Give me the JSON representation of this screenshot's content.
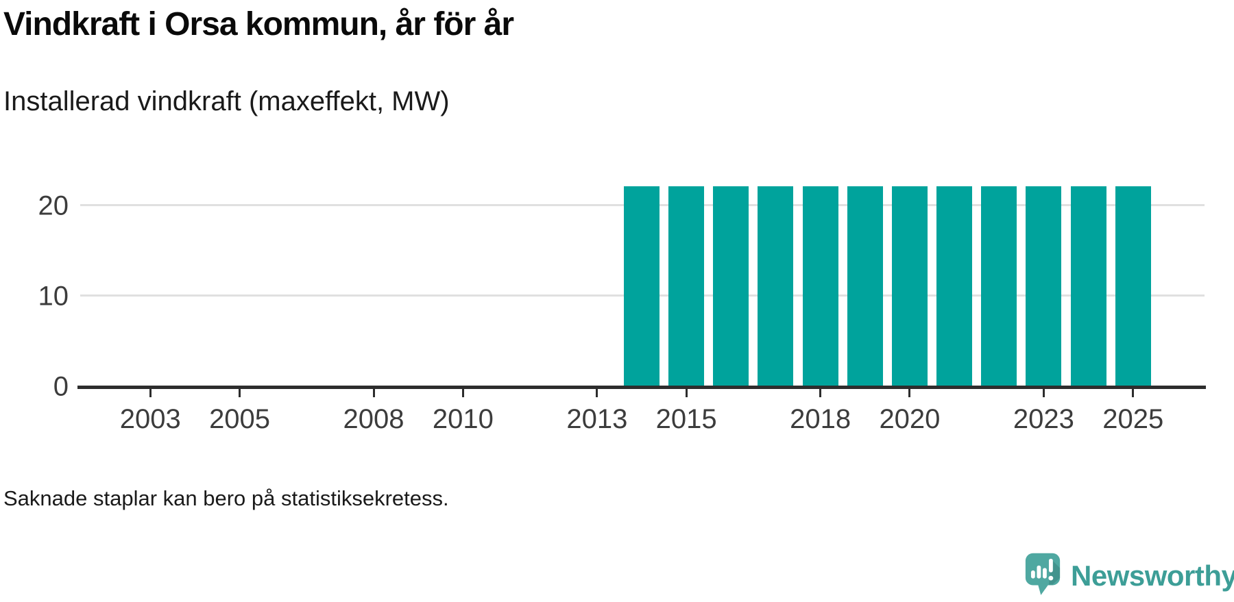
{
  "header": {
    "title": "Vindkraft i Orsa kommun, år för år",
    "subtitle": "Installerad vindkraft (maxeffekt, MW)"
  },
  "footer": {
    "note": "Saknade staplar kan bero på statistiksekretess.",
    "logo_text": "Newsworthy"
  },
  "colors": {
    "bar": "#00a39c",
    "grid": "#e0e0e0",
    "axis": "#2d2d2d",
    "tick_text": "#3c3c3c",
    "title": "#0a0a0a",
    "subtitle": "#1a1a1a",
    "note": "#1a1a1a",
    "logo_bubble": "#4fa8a1",
    "logo_text": "#3d9e97"
  },
  "chart_data": {
    "type": "bar",
    "title": "Vindkraft i Orsa kommun, år för år",
    "subtitle": "Installerad vindkraft (maxeffekt, MW)",
    "unit": "MW",
    "categories": [
      "2002",
      "2003",
      "2004",
      "2005",
      "2006",
      "2007",
      "2008",
      "2009",
      "2010",
      "2011",
      "2012",
      "2013",
      "2014",
      "2015",
      "2016",
      "2017",
      "2018",
      "2019",
      "2020",
      "2021",
      "2022",
      "2023",
      "2024",
      "2025"
    ],
    "values": [
      null,
      null,
      null,
      null,
      null,
      null,
      null,
      null,
      null,
      null,
      null,
      null,
      22,
      22,
      22,
      22,
      22,
      22,
      22,
      22,
      22,
      22,
      22,
      22
    ],
    "x_tick_labels": [
      "2003",
      "2005",
      "2008",
      "2010",
      "2013",
      "2015",
      "2018",
      "2020",
      "2023",
      "2025"
    ],
    "y_ticks": [
      0,
      10,
      20
    ],
    "ylim": [
      0,
      25.2
    ],
    "xlim": [
      2001.4,
      2026.6
    ],
    "grid": "horizontal",
    "legend": "none",
    "note": "Saknade staplar kan bero på statistiksekretess."
  }
}
